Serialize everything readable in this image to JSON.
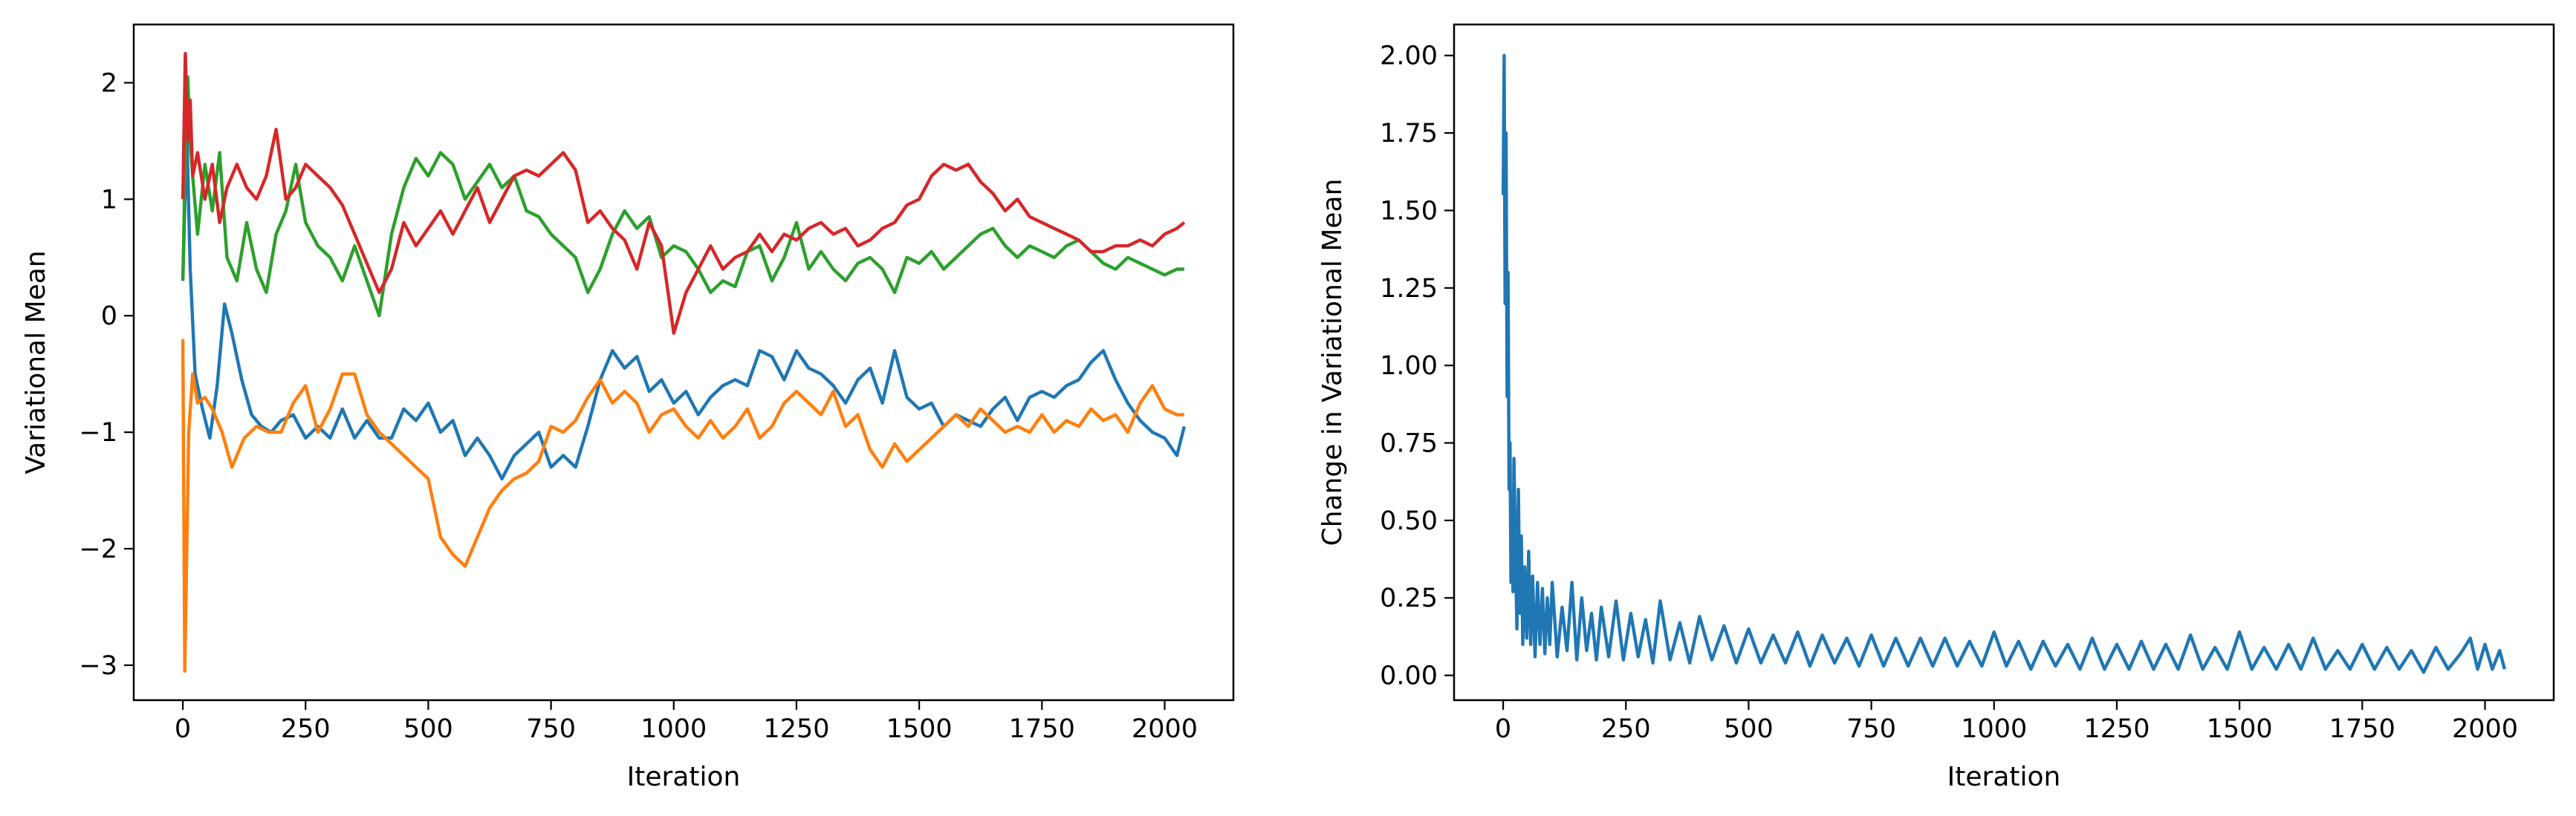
{
  "colors": {
    "blue": "#1f77b4",
    "orange": "#ff7f0e",
    "green": "#2ca02c",
    "red": "#d62728"
  },
  "chart_data": [
    {
      "type": "line",
      "title": "",
      "xlabel": "Iteration",
      "ylabel": "Variational Mean",
      "xlim": [
        -100,
        2140
      ],
      "ylim": [
        -3.3,
        2.5
      ],
      "xticks": [
        0,
        250,
        500,
        750,
        1000,
        1250,
        1500,
        1750,
        2000
      ],
      "xtick_labels": [
        "0",
        "250",
        "500",
        "750",
        "1000",
        "1250",
        "1500",
        "1750",
        "2000"
      ],
      "yticks": [
        -3,
        -2,
        -1,
        0,
        1,
        2
      ],
      "ytick_labels": [
        "−3",
        "−2",
        "−1",
        "0",
        "1",
        "2"
      ],
      "grid": false,
      "legend": "none",
      "series": [
        {
          "color": "#1f77b4",
          "x": [
            0,
            8,
            15,
            25,
            40,
            55,
            70,
            85,
            100,
            120,
            140,
            160,
            180,
            200,
            225,
            250,
            275,
            300,
            325,
            350,
            375,
            400,
            425,
            450,
            475,
            500,
            525,
            550,
            575,
            600,
            625,
            650,
            675,
            700,
            725,
            750,
            775,
            800,
            825,
            850,
            875,
            900,
            925,
            950,
            975,
            1000,
            1025,
            1050,
            1075,
            1100,
            1125,
            1150,
            1175,
            1200,
            1225,
            1250,
            1275,
            1300,
            1325,
            1350,
            1375,
            1400,
            1425,
            1450,
            1475,
            1500,
            1525,
            1550,
            1575,
            1600,
            1625,
            1650,
            1675,
            1700,
            1725,
            1750,
            1775,
            1800,
            1825,
            1850,
            1875,
            1900,
            1925,
            1950,
            1975,
            2000,
            2025,
            2040
          ],
          "y": [
            0.3,
            1.6,
            0.4,
            -0.5,
            -0.8,
            -1.05,
            -0.6,
            0.1,
            -0.15,
            -0.55,
            -0.85,
            -0.95,
            -1.0,
            -0.9,
            -0.85,
            -1.05,
            -0.95,
            -1.05,
            -0.8,
            -1.05,
            -0.9,
            -1.05,
            -1.05,
            -0.8,
            -0.9,
            -0.75,
            -1.0,
            -0.9,
            -1.2,
            -1.05,
            -1.2,
            -1.4,
            -1.2,
            -1.1,
            -1.0,
            -1.3,
            -1.2,
            -1.3,
            -0.95,
            -0.55,
            -0.3,
            -0.45,
            -0.35,
            -0.65,
            -0.55,
            -0.75,
            -0.65,
            -0.85,
            -0.7,
            -0.6,
            -0.55,
            -0.6,
            -0.3,
            -0.35,
            -0.55,
            -0.3,
            -0.45,
            -0.5,
            -0.6,
            -0.75,
            -0.55,
            -0.45,
            -0.75,
            -0.3,
            -0.7,
            -0.8,
            -0.75,
            -0.95,
            -0.85,
            -0.9,
            -0.95,
            -0.8,
            -0.7,
            -0.9,
            -0.7,
            -0.65,
            -0.7,
            -0.6,
            -0.55,
            -0.4,
            -0.3,
            -0.55,
            -0.75,
            -0.9,
            -1.0,
            -1.05,
            -1.2,
            -0.95
          ]
        },
        {
          "color": "#ff7f0e",
          "x": [
            0,
            4,
            8,
            12,
            20,
            30,
            45,
            60,
            80,
            100,
            125,
            150,
            175,
            200,
            225,
            250,
            275,
            300,
            325,
            350,
            375,
            400,
            425,
            450,
            475,
            500,
            525,
            550,
            575,
            600,
            625,
            650,
            675,
            700,
            725,
            750,
            775,
            800,
            825,
            850,
            875,
            900,
            925,
            950,
            975,
            1000,
            1025,
            1050,
            1075,
            1100,
            1125,
            1150,
            1175,
            1200,
            1225,
            1250,
            1275,
            1300,
            1325,
            1350,
            1375,
            1400,
            1425,
            1450,
            1475,
            1500,
            1525,
            1550,
            1575,
            1600,
            1625,
            1650,
            1675,
            1700,
            1725,
            1750,
            1775,
            1800,
            1825,
            1850,
            1875,
            1900,
            1925,
            1950,
            1975,
            2000,
            2025,
            2040
          ],
          "y": [
            -0.2,
            -3.05,
            -2.0,
            -1.0,
            -0.5,
            -0.75,
            -0.7,
            -0.8,
            -1.0,
            -1.3,
            -1.05,
            -0.95,
            -1.0,
            -1.0,
            -0.75,
            -0.6,
            -1.0,
            -0.8,
            -0.5,
            -0.5,
            -0.85,
            -1.0,
            -1.1,
            -1.2,
            -1.3,
            -1.4,
            -1.9,
            -2.05,
            -2.15,
            -1.9,
            -1.65,
            -1.5,
            -1.4,
            -1.35,
            -1.25,
            -0.95,
            -1.0,
            -0.9,
            -0.7,
            -0.55,
            -0.75,
            -0.65,
            -0.75,
            -1.0,
            -0.85,
            -0.8,
            -0.95,
            -1.05,
            -0.9,
            -1.05,
            -0.95,
            -0.8,
            -1.05,
            -0.95,
            -0.75,
            -0.65,
            -0.75,
            -0.85,
            -0.65,
            -0.95,
            -0.85,
            -1.15,
            -1.3,
            -1.1,
            -1.25,
            -1.15,
            -1.05,
            -0.95,
            -0.85,
            -0.95,
            -0.8,
            -0.9,
            -1.0,
            -0.95,
            -1.0,
            -0.85,
            -1.0,
            -0.9,
            -0.95,
            -0.8,
            -0.9,
            -0.85,
            -1.0,
            -0.75,
            -0.6,
            -0.8,
            -0.85,
            -0.85
          ]
        },
        {
          "color": "#2ca02c",
          "x": [
            0,
            5,
            10,
            15,
            20,
            30,
            45,
            60,
            75,
            90,
            110,
            130,
            150,
            170,
            190,
            210,
            230,
            250,
            275,
            300,
            325,
            350,
            375,
            400,
            425,
            450,
            475,
            500,
            525,
            550,
            575,
            600,
            625,
            650,
            675,
            700,
            725,
            750,
            775,
            800,
            825,
            850,
            875,
            900,
            925,
            950,
            975,
            1000,
            1025,
            1050,
            1075,
            1100,
            1125,
            1150,
            1175,
            1200,
            1225,
            1250,
            1275,
            1300,
            1325,
            1350,
            1375,
            1400,
            1425,
            1450,
            1475,
            1500,
            1525,
            1550,
            1575,
            1600,
            1625,
            1650,
            1675,
            1700,
            1725,
            1750,
            1775,
            1800,
            1825,
            1850,
            1875,
            1900,
            1925,
            1950,
            1975,
            2000,
            2025,
            2040
          ],
          "y": [
            0.3,
            1.4,
            2.05,
            1.5,
            1.2,
            0.7,
            1.3,
            0.9,
            1.4,
            0.5,
            0.3,
            0.8,
            0.4,
            0.2,
            0.7,
            0.9,
            1.3,
            0.8,
            0.6,
            0.5,
            0.3,
            0.6,
            0.3,
            0.0,
            0.7,
            1.1,
            1.35,
            1.2,
            1.4,
            1.3,
            1.0,
            1.15,
            1.3,
            1.1,
            1.2,
            0.9,
            0.85,
            0.7,
            0.6,
            0.5,
            0.2,
            0.4,
            0.7,
            0.9,
            0.75,
            0.85,
            0.5,
            0.6,
            0.55,
            0.4,
            0.2,
            0.3,
            0.25,
            0.55,
            0.6,
            0.3,
            0.5,
            0.8,
            0.4,
            0.55,
            0.4,
            0.3,
            0.45,
            0.5,
            0.4,
            0.2,
            0.5,
            0.45,
            0.55,
            0.4,
            0.5,
            0.6,
            0.7,
            0.75,
            0.6,
            0.5,
            0.6,
            0.55,
            0.5,
            0.6,
            0.65,
            0.55,
            0.45,
            0.4,
            0.5,
            0.45,
            0.4,
            0.35,
            0.4,
            0.4
          ]
        },
        {
          "color": "#d62728",
          "x": [
            0,
            5,
            10,
            15,
            20,
            30,
            45,
            60,
            75,
            90,
            110,
            130,
            150,
            170,
            190,
            210,
            230,
            250,
            275,
            300,
            325,
            350,
            375,
            400,
            425,
            450,
            475,
            500,
            525,
            550,
            575,
            600,
            625,
            650,
            675,
            700,
            725,
            750,
            775,
            800,
            825,
            850,
            875,
            900,
            925,
            950,
            975,
            1000,
            1025,
            1050,
            1075,
            1100,
            1125,
            1150,
            1175,
            1200,
            1225,
            1250,
            1275,
            1300,
            1325,
            1350,
            1375,
            1400,
            1425,
            1450,
            1475,
            1500,
            1525,
            1550,
            1575,
            1600,
            1625,
            1650,
            1675,
            1700,
            1725,
            1750,
            1775,
            1800,
            1825,
            1850,
            1875,
            1900,
            1925,
            1950,
            1975,
            2000,
            2025,
            2040
          ],
          "y": [
            1.0,
            2.25,
            1.5,
            1.85,
            1.2,
            1.4,
            1.0,
            1.3,
            0.8,
            1.1,
            1.3,
            1.1,
            1.0,
            1.2,
            1.6,
            1.0,
            1.1,
            1.3,
            1.2,
            1.1,
            0.95,
            0.7,
            0.45,
            0.2,
            0.4,
            0.8,
            0.6,
            0.75,
            0.9,
            0.7,
            0.9,
            1.1,
            0.8,
            1.0,
            1.2,
            1.25,
            1.2,
            1.3,
            1.4,
            1.25,
            0.8,
            0.9,
            0.75,
            0.65,
            0.4,
            0.8,
            0.6,
            -0.15,
            0.2,
            0.4,
            0.6,
            0.4,
            0.5,
            0.55,
            0.7,
            0.55,
            0.7,
            0.65,
            0.75,
            0.8,
            0.7,
            0.75,
            0.6,
            0.65,
            0.75,
            0.8,
            0.95,
            1.0,
            1.2,
            1.3,
            1.25,
            1.3,
            1.15,
            1.05,
            0.9,
            1.0,
            0.85,
            0.8,
            0.75,
            0.7,
            0.65,
            0.55,
            0.55,
            0.6,
            0.6,
            0.65,
            0.6,
            0.7,
            0.75,
            0.8
          ]
        }
      ]
    },
    {
      "type": "line",
      "title": "",
      "xlabel": "Iteration",
      "ylabel": "Change in Variational Mean",
      "xlim": [
        -100,
        2140
      ],
      "ylim": [
        -0.08,
        2.1
      ],
      "xticks": [
        0,
        250,
        500,
        750,
        1000,
        1250,
        1500,
        1750,
        2000
      ],
      "xtick_labels": [
        "0",
        "250",
        "500",
        "750",
        "1000",
        "1250",
        "1500",
        "1750",
        "2000"
      ],
      "yticks": [
        0.0,
        0.25,
        0.5,
        0.75,
        1.0,
        1.25,
        1.5,
        1.75,
        2.0
      ],
      "ytick_labels": [
        "0.00",
        "0.25",
        "0.50",
        "0.75",
        "1.00",
        "1.25",
        "1.50",
        "1.75",
        "2.00"
      ],
      "grid": false,
      "legend": "none",
      "series": [
        {
          "color": "#1f77b4",
          "x": [
            0,
            2,
            4,
            6,
            8,
            10,
            12,
            14,
            16,
            18,
            20,
            22,
            25,
            28,
            31,
            34,
            37,
            40,
            44,
            48,
            52,
            56,
            60,
            65,
            70,
            75,
            80,
            85,
            90,
            95,
            100,
            110,
            120,
            130,
            140,
            150,
            160,
            170,
            180,
            190,
            200,
            215,
            230,
            245,
            260,
            275,
            290,
            305,
            320,
            340,
            360,
            380,
            400,
            425,
            450,
            475,
            500,
            525,
            550,
            575,
            600,
            625,
            650,
            675,
            700,
            725,
            750,
            775,
            800,
            825,
            850,
            875,
            900,
            925,
            950,
            975,
            1000,
            1025,
            1050,
            1075,
            1100,
            1125,
            1150,
            1175,
            1200,
            1225,
            1250,
            1275,
            1300,
            1325,
            1350,
            1375,
            1400,
            1425,
            1450,
            1475,
            1500,
            1525,
            1550,
            1575,
            1600,
            1625,
            1650,
            1675,
            1700,
            1725,
            1750,
            1775,
            1800,
            1825,
            1850,
            1875,
            1900,
            1925,
            1950,
            1970,
            1985,
            2000,
            2015,
            2030,
            2040
          ],
          "y": [
            1.55,
            2.0,
            1.2,
            1.75,
            0.9,
            1.3,
            0.6,
            0.75,
            0.3,
            0.55,
            0.27,
            0.7,
            0.4,
            0.15,
            0.6,
            0.2,
            0.45,
            0.1,
            0.35,
            0.12,
            0.4,
            0.1,
            0.32,
            0.06,
            0.3,
            0.1,
            0.28,
            0.07,
            0.25,
            0.1,
            0.3,
            0.06,
            0.22,
            0.08,
            0.3,
            0.05,
            0.25,
            0.08,
            0.2,
            0.05,
            0.22,
            0.06,
            0.24,
            0.05,
            0.2,
            0.06,
            0.18,
            0.04,
            0.24,
            0.05,
            0.17,
            0.04,
            0.19,
            0.05,
            0.16,
            0.04,
            0.15,
            0.04,
            0.13,
            0.04,
            0.14,
            0.03,
            0.13,
            0.04,
            0.12,
            0.03,
            0.13,
            0.03,
            0.12,
            0.03,
            0.12,
            0.03,
            0.12,
            0.03,
            0.11,
            0.03,
            0.14,
            0.03,
            0.11,
            0.02,
            0.11,
            0.03,
            0.1,
            0.02,
            0.12,
            0.02,
            0.1,
            0.02,
            0.11,
            0.02,
            0.1,
            0.02,
            0.13,
            0.02,
            0.09,
            0.02,
            0.14,
            0.02,
            0.09,
            0.02,
            0.1,
            0.02,
            0.12,
            0.02,
            0.08,
            0.02,
            0.1,
            0.02,
            0.09,
            0.02,
            0.08,
            0.01,
            0.09,
            0.02,
            0.07,
            0.12,
            0.02,
            0.1,
            0.02,
            0.08,
            0.02
          ]
        }
      ]
    }
  ]
}
